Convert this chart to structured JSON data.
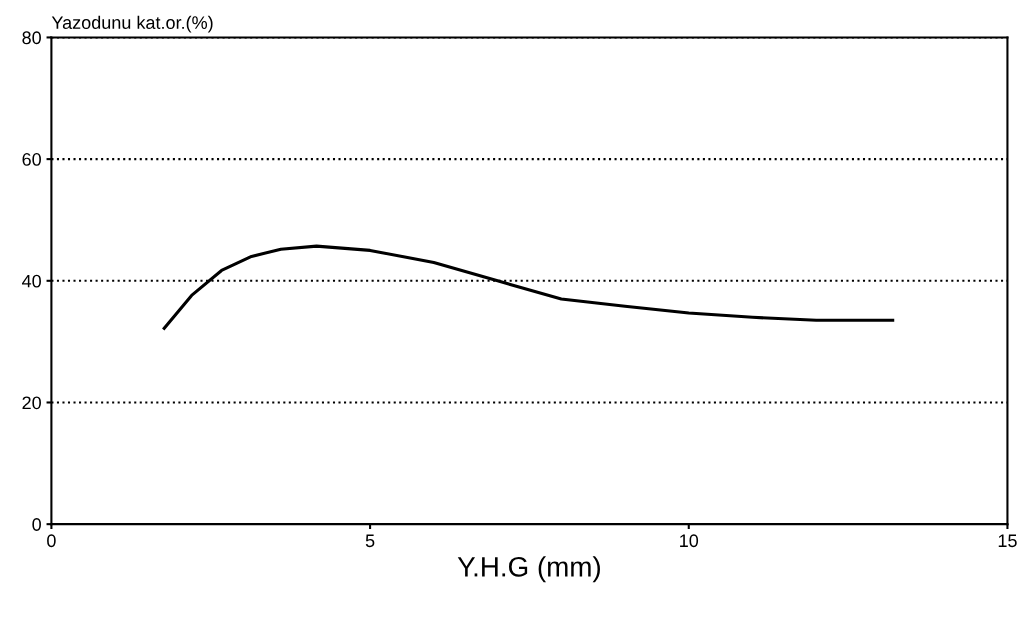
{
  "chart_data": {
    "type": "line",
    "xlabel": "Y.H.G (mm)",
    "ylabel": "Yazodunu kat.or.(%)",
    "series": [
      {
        "color": "#000000",
        "x": [
          1.77,
          2.2,
          2.67,
          3.14,
          3.6,
          4.16,
          5,
          6,
          7,
          8,
          9,
          10,
          11,
          12,
          13.2
        ],
        "values": [
          32.2,
          37.6,
          41.7,
          44,
          45.2,
          45.7,
          45,
          43,
          40,
          37,
          35.8,
          34.7,
          34,
          33.5,
          33.5
        ]
      }
    ],
    "xlim": [
      0,
      15
    ],
    "xticks": [
      0,
      5,
      10,
      15
    ],
    "ylim": [
      0,
      80
    ],
    "yticks": [
      0,
      20,
      40,
      60,
      80
    ],
    "grid": "y",
    "marker": "none",
    "line_style": "solid"
  }
}
